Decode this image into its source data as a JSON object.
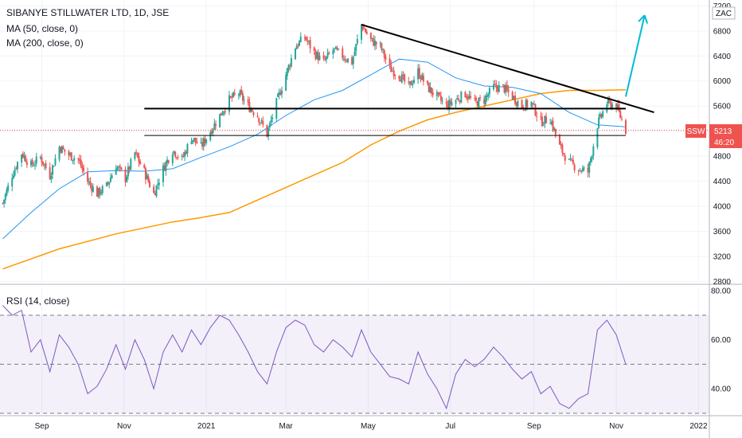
{
  "header": {
    "title": "SIBANYE STILLWATER LTD, 1D, JSE",
    "ma50_label": "MA (50, close, 0)",
    "ma200_label": "MA (200, close, 0)",
    "rsi_label": "RSI (14, close)",
    "currency": "ZAC"
  },
  "quote": {
    "symbol": "SSW",
    "last_price": "5213",
    "countdown": "46:20"
  },
  "colors": {
    "up": "#26a69a",
    "down": "#ef5350",
    "ma50": "#2196f3",
    "ma200": "#ff9800",
    "rsi": "#7e57c2",
    "trendline": "#000000",
    "arrow": "#00bcd4"
  },
  "chart_data": [
    {
      "type": "candlestick",
      "y_ticks": [
        2800,
        3200,
        3600,
        4000,
        4400,
        4800,
        5200,
        5600,
        6000,
        6400,
        6800,
        7200
      ],
      "ylim": [
        2780,
        7230
      ],
      "x_ticks": [
        "Sep",
        "Nov",
        "2021",
        "Mar",
        "May",
        "Jul",
        "Sep",
        "Nov",
        "2022"
      ],
      "x_tick_dates": [
        "2020-09-01",
        "2020-11-01",
        "2021-01-01",
        "2021-03-01",
        "2021-05-01",
        "2021-07-01",
        "2021-09-01",
        "2021-11-01",
        "2022-01-01"
      ],
      "xlim": [
        "2020-08-01",
        "2022-01-09"
      ],
      "close_path": [
        [
          "2020-08-03",
          4050
        ],
        [
          "2020-08-10",
          4500
        ],
        [
          "2020-08-17",
          4850
        ],
        [
          "2020-08-24",
          4650
        ],
        [
          "2020-08-31",
          4780
        ],
        [
          "2020-09-07",
          4500
        ],
        [
          "2020-09-14",
          4950
        ],
        [
          "2020-09-21",
          4820
        ],
        [
          "2020-09-28",
          4750
        ],
        [
          "2020-10-05",
          4400
        ],
        [
          "2020-10-12",
          4200
        ],
        [
          "2020-10-19",
          4320
        ],
        [
          "2020-10-26",
          4650
        ],
        [
          "2020-11-02",
          4450
        ],
        [
          "2020-11-09",
          4850
        ],
        [
          "2020-11-16",
          4550
        ],
        [
          "2020-11-23",
          4200
        ],
        [
          "2020-11-30",
          4600
        ],
        [
          "2020-12-07",
          4900
        ],
        [
          "2020-12-14",
          4750
        ],
        [
          "2020-12-21",
          5100
        ],
        [
          "2020-12-28",
          4950
        ],
        [
          "2021-01-04",
          5200
        ],
        [
          "2021-01-11",
          5450
        ],
        [
          "2021-01-18",
          5700
        ],
        [
          "2021-01-25",
          5800
        ],
        [
          "2021-02-01",
          5600
        ],
        [
          "2021-02-08",
          5450
        ],
        [
          "2021-02-15",
          5150
        ],
        [
          "2021-02-22",
          5650
        ],
        [
          "2021-03-01",
          6100
        ],
        [
          "2021-03-08",
          6550
        ],
        [
          "2021-03-15",
          6700
        ],
        [
          "2021-03-22",
          6450
        ],
        [
          "2021-03-29",
          6300
        ],
        [
          "2021-04-05",
          6500
        ],
        [
          "2021-04-12",
          6400
        ],
        [
          "2021-04-19",
          6300
        ],
        [
          "2021-04-26",
          6900
        ],
        [
          "2021-05-03",
          6650
        ],
        [
          "2021-05-10",
          6550
        ],
        [
          "2021-05-17",
          6200
        ],
        [
          "2021-05-24",
          6100
        ],
        [
          "2021-05-31",
          5900
        ],
        [
          "2021-06-07",
          6150
        ],
        [
          "2021-06-14",
          5900
        ],
        [
          "2021-06-21",
          5750
        ],
        [
          "2021-06-28",
          5600
        ],
        [
          "2021-07-05",
          5700
        ],
        [
          "2021-07-12",
          5800
        ],
        [
          "2021-07-19",
          5650
        ],
        [
          "2021-07-26",
          5700
        ],
        [
          "2021-08-02",
          5900
        ],
        [
          "2021-08-09",
          5900
        ],
        [
          "2021-08-16",
          5750
        ],
        [
          "2021-08-23",
          5600
        ],
        [
          "2021-08-30",
          5650
        ],
        [
          "2021-09-06",
          5350
        ],
        [
          "2021-09-13",
          5400
        ],
        [
          "2021-09-20",
          4950
        ],
        [
          "2021-09-27",
          4700
        ],
        [
          "2021-10-04",
          4600
        ],
        [
          "2021-10-11",
          4550
        ],
        [
          "2021-10-18",
          5300
        ],
        [
          "2021-10-25",
          5650
        ],
        [
          "2021-11-01",
          5600
        ],
        [
          "2021-11-08",
          5213
        ]
      ],
      "ma50_path": [
        [
          "2020-08-03",
          3480
        ],
        [
          "2020-08-24",
          3900
        ],
        [
          "2020-09-14",
          4280
        ],
        [
          "2020-10-05",
          4550
        ],
        [
          "2020-10-26",
          4570
        ],
        [
          "2020-11-16",
          4560
        ],
        [
          "2020-12-07",
          4600
        ],
        [
          "2020-12-28",
          4780
        ],
        [
          "2021-01-18",
          4950
        ],
        [
          "2021-02-08",
          5150
        ],
        [
          "2021-03-01",
          5450
        ],
        [
          "2021-03-22",
          5700
        ],
        [
          "2021-04-12",
          5850
        ],
        [
          "2021-05-03",
          6100
        ],
        [
          "2021-05-24",
          6350
        ],
        [
          "2021-06-14",
          6300
        ],
        [
          "2021-07-05",
          6050
        ],
        [
          "2021-07-26",
          5920
        ],
        [
          "2021-08-16",
          5900
        ],
        [
          "2021-09-06",
          5800
        ],
        [
          "2021-09-27",
          5500
        ],
        [
          "2021-10-18",
          5300
        ],
        [
          "2021-11-08",
          5270
        ]
      ],
      "ma200_path": [
        [
          "2020-08-03",
          3000
        ],
        [
          "2020-09-14",
          3320
        ],
        [
          "2020-10-26",
          3560
        ],
        [
          "2020-12-07",
          3750
        ],
        [
          "2020-12-28",
          3820
        ],
        [
          "2021-01-18",
          3900
        ],
        [
          "2021-02-08",
          4100
        ],
        [
          "2021-03-01",
          4300
        ],
        [
          "2021-03-22",
          4500
        ],
        [
          "2021-04-12",
          4700
        ],
        [
          "2021-05-03",
          4980
        ],
        [
          "2021-05-24",
          5200
        ],
        [
          "2021-06-14",
          5380
        ],
        [
          "2021-07-05",
          5500
        ],
        [
          "2021-07-26",
          5600
        ],
        [
          "2021-08-16",
          5700
        ],
        [
          "2021-09-06",
          5800
        ],
        [
          "2021-09-27",
          5850
        ],
        [
          "2021-10-18",
          5850
        ],
        [
          "2021-11-08",
          5860
        ]
      ],
      "drawings": {
        "descending_trendline": [
          [
            "2021-04-26",
            6900
          ],
          [
            "2021-11-29",
            5500
          ]
        ],
        "horizontal_resistance": [
          [
            "2020-11-16",
            5560
          ],
          [
            "2021-11-08",
            5560
          ]
        ],
        "horizontal_support": [
          [
            "2020-11-16",
            5130
          ],
          [
            "2021-11-08",
            5130
          ]
        ],
        "projection_arrow": [
          [
            "2021-11-08",
            5750
          ],
          [
            "2021-11-22",
            7050
          ]
        ]
      }
    },
    {
      "type": "line",
      "name": "RSI (14, close)",
      "y_ticks": [
        40,
        60,
        80
      ],
      "ylim": [
        30,
        81
      ],
      "bands": [
        30,
        50,
        70
      ],
      "values": [
        [
          "2020-08-03",
          74
        ],
        [
          "2020-08-10",
          70
        ],
        [
          "2020-08-17",
          72
        ],
        [
          "2020-08-24",
          55
        ],
        [
          "2020-08-31",
          60
        ],
        [
          "2020-09-07",
          47
        ],
        [
          "2020-09-14",
          62
        ],
        [
          "2020-09-21",
          57
        ],
        [
          "2020-09-28",
          50
        ],
        [
          "2020-10-05",
          38
        ],
        [
          "2020-10-12",
          41
        ],
        [
          "2020-10-19",
          48
        ],
        [
          "2020-10-26",
          58
        ],
        [
          "2020-11-02",
          48
        ],
        [
          "2020-11-09",
          60
        ],
        [
          "2020-11-16",
          52
        ],
        [
          "2020-11-23",
          40
        ],
        [
          "2020-11-30",
          55
        ],
        [
          "2020-12-07",
          62
        ],
        [
          "2020-12-14",
          55
        ],
        [
          "2020-12-21",
          64
        ],
        [
          "2020-12-28",
          58
        ],
        [
          "2021-01-04",
          65
        ],
        [
          "2021-01-11",
          70
        ],
        [
          "2021-01-18",
          68
        ],
        [
          "2021-01-25",
          62
        ],
        [
          "2021-02-01",
          55
        ],
        [
          "2021-02-08",
          47
        ],
        [
          "2021-02-15",
          42
        ],
        [
          "2021-02-22",
          55
        ],
        [
          "2021-03-01",
          65
        ],
        [
          "2021-03-08",
          68
        ],
        [
          "2021-03-15",
          66
        ],
        [
          "2021-03-22",
          58
        ],
        [
          "2021-03-29",
          55
        ],
        [
          "2021-04-05",
          60
        ],
        [
          "2021-04-12",
          57
        ],
        [
          "2021-04-19",
          53
        ],
        [
          "2021-04-26",
          64
        ],
        [
          "2021-05-03",
          55
        ],
        [
          "2021-05-10",
          50
        ],
        [
          "2021-05-17",
          45
        ],
        [
          "2021-05-24",
          44
        ],
        [
          "2021-05-31",
          42
        ],
        [
          "2021-06-07",
          55
        ],
        [
          "2021-06-14",
          46
        ],
        [
          "2021-06-21",
          40
        ],
        [
          "2021-06-28",
          32
        ],
        [
          "2021-07-05",
          46
        ],
        [
          "2021-07-12",
          52
        ],
        [
          "2021-07-19",
          49
        ],
        [
          "2021-07-26",
          52
        ],
        [
          "2021-08-02",
          57
        ],
        [
          "2021-08-09",
          53
        ],
        [
          "2021-08-16",
          48
        ],
        [
          "2021-08-23",
          44
        ],
        [
          "2021-08-30",
          47
        ],
        [
          "2021-09-06",
          38
        ],
        [
          "2021-09-13",
          41
        ],
        [
          "2021-09-20",
          34
        ],
        [
          "2021-09-27",
          32
        ],
        [
          "2021-10-04",
          36
        ],
        [
          "2021-10-11",
          38
        ],
        [
          "2021-10-18",
          64
        ],
        [
          "2021-10-25",
          68
        ],
        [
          "2021-11-01",
          62
        ],
        [
          "2021-11-08",
          50
        ]
      ]
    }
  ]
}
